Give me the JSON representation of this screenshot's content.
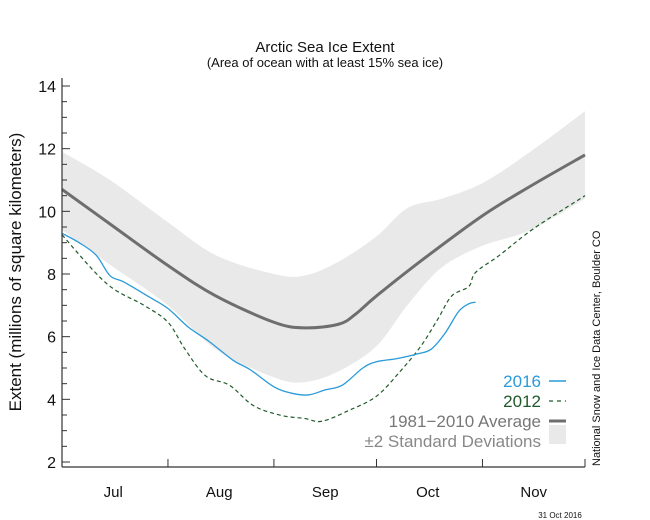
{
  "chart_data": {
    "type": "line",
    "title": "Arctic Sea Ice Extent",
    "subtitle": "(Area of ocean with at least 15% sea ice)",
    "ylabel": "Extent (millions of square kilometers)",
    "xlabel": "",
    "ylim": [
      2,
      14
    ],
    "yticks": [
      "2",
      "4",
      "6",
      "8",
      "10",
      "12",
      "14"
    ],
    "xlim": [
      "07-01",
      "12-01"
    ],
    "month_labels": [
      "Jul",
      "Aug",
      "Sep",
      "Oct",
      "Nov"
    ],
    "grid": false,
    "legend_position": "bottom-right",
    "credit": "National Snow and Ice Data Center, Boulder CO",
    "date_stamp": "31 Oct 2016",
    "colors": {
      "2016": "#2a9ad8",
      "2012": "#1f5a2a",
      "average": "#6e6e6e",
      "band": "#e9e9e9"
    },
    "series": [
      {
        "name": "2016",
        "style": "solid",
        "x": [
          "07-01",
          "07-06",
          "07-11",
          "07-15",
          "07-19",
          "07-26",
          "08-01",
          "08-07",
          "08-13",
          "08-20",
          "08-25",
          "09-01",
          "09-06",
          "09-11",
          "09-16",
          "09-21",
          "09-27",
          "10-01",
          "10-07",
          "10-13",
          "10-17",
          "10-21",
          "10-25",
          "10-28",
          "10-30"
        ],
        "y": [
          9.3,
          9.0,
          8.6,
          7.95,
          7.75,
          7.3,
          6.9,
          6.3,
          5.85,
          5.25,
          4.95,
          4.4,
          4.2,
          4.14,
          4.3,
          4.45,
          5.0,
          5.2,
          5.3,
          5.45,
          5.6,
          6.1,
          6.8,
          7.05,
          7.1
        ]
      },
      {
        "name": "2012",
        "style": "dashed",
        "x": [
          "07-01",
          "07-14",
          "07-25",
          "08-01",
          "08-06",
          "08-12",
          "08-19",
          "08-26",
          "09-03",
          "09-10",
          "09-15",
          "09-23",
          "10-01",
          "10-08",
          "10-14",
          "10-19",
          "10-23",
          "10-28",
          "10-30",
          "11-06",
          "11-16",
          "12-01"
        ],
        "y": [
          9.25,
          7.7,
          7.0,
          6.46,
          5.6,
          4.75,
          4.45,
          3.8,
          3.49,
          3.39,
          3.3,
          3.65,
          4.1,
          4.9,
          5.7,
          6.57,
          7.3,
          7.6,
          8.05,
          8.6,
          9.45,
          10.5
        ]
      },
      {
        "name": "1981−2010 Average",
        "style": "thick",
        "x": [
          "07-01",
          "07-15",
          "08-01",
          "08-15",
          "09-01",
          "09-10",
          "09-20",
          "09-25",
          "10-01",
          "10-15",
          "11-01",
          "11-15",
          "12-01"
        ],
        "y": [
          10.7,
          9.6,
          8.27,
          7.3,
          6.46,
          6.28,
          6.4,
          6.73,
          7.3,
          8.5,
          9.86,
          10.8,
          11.8
        ]
      }
    ],
    "band": {
      "name": "±2 Standard Deviations",
      "x": [
        "07-01",
        "07-15",
        "08-01",
        "08-15",
        "09-01",
        "09-10",
        "09-20",
        "10-01",
        "10-10",
        "10-20",
        "11-01",
        "11-15",
        "12-01"
      ],
      "upper": [
        11.9,
        11.0,
        9.65,
        8.6,
        8.0,
        7.95,
        8.4,
        9.2,
        10.1,
        10.4,
        10.9,
        11.9,
        13.2
      ],
      "lower": [
        9.4,
        8.3,
        7.0,
        5.6,
        4.7,
        4.55,
        4.9,
        5.7,
        7.0,
        8.2,
        8.9,
        9.4,
        10.4
      ]
    }
  },
  "legend": [
    {
      "label": "2016"
    },
    {
      "label": "2012"
    },
    {
      "label": "1981−2010 Average"
    },
    {
      "label": "±2 Standard Deviations"
    }
  ]
}
